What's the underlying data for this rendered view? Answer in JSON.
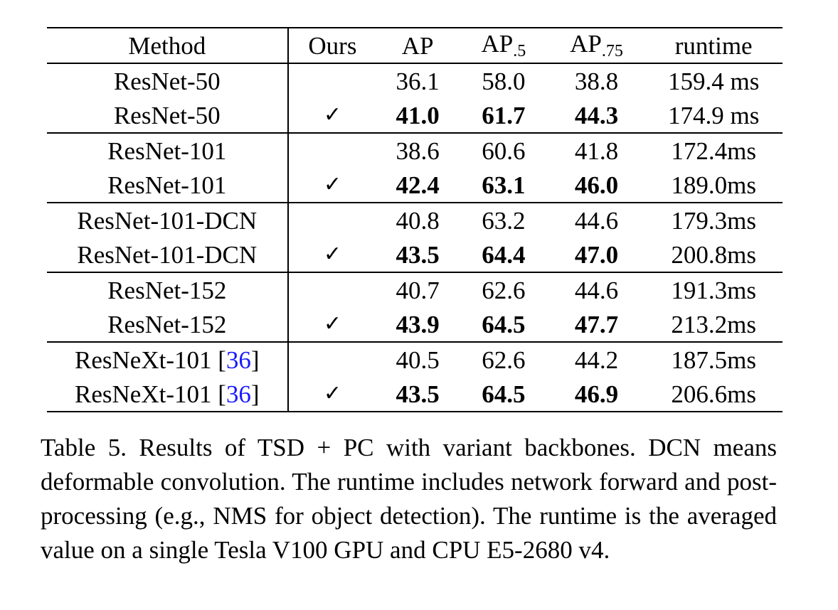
{
  "table": {
    "headers": {
      "method": "Method",
      "ours": "Ours",
      "ap": "AP",
      "ap5_base": "AP",
      "ap5_sub": ".5",
      "ap75_base": "AP",
      "ap75_sub": ".75",
      "runtime": "runtime"
    },
    "groups": [
      {
        "rows": [
          {
            "method": "ResNet-50",
            "cite": "",
            "ours": "",
            "ap": "36.1",
            "ap5": "58.0",
            "ap75": "38.8",
            "runtime": "159.4 ms"
          },
          {
            "method": "ResNet-50",
            "cite": "",
            "ours": "✓",
            "ap": "41.0",
            "ap5": "61.7",
            "ap75": "44.3",
            "runtime": "174.9 ms"
          }
        ]
      },
      {
        "rows": [
          {
            "method": "ResNet-101",
            "cite": "",
            "ours": "",
            "ap": "38.6",
            "ap5": "60.6",
            "ap75": "41.8",
            "runtime": "172.4ms"
          },
          {
            "method": "ResNet-101",
            "cite": "",
            "ours": "✓",
            "ap": "42.4",
            "ap5": "63.1",
            "ap75": "46.0",
            "runtime": "189.0ms"
          }
        ]
      },
      {
        "rows": [
          {
            "method": "ResNet-101-DCN",
            "cite": "",
            "ours": "",
            "ap": "40.8",
            "ap5": "63.2",
            "ap75": "44.6",
            "runtime": "179.3ms"
          },
          {
            "method": "ResNet-101-DCN",
            "cite": "",
            "ours": "✓",
            "ap": "43.5",
            "ap5": "64.4",
            "ap75": "47.0",
            "runtime": "200.8ms"
          }
        ]
      },
      {
        "rows": [
          {
            "method": "ResNet-152",
            "cite": "",
            "ours": "",
            "ap": "40.7",
            "ap5": "62.6",
            "ap75": "44.6",
            "runtime": "191.3ms"
          },
          {
            "method": "ResNet-152",
            "cite": "",
            "ours": "✓",
            "ap": "43.9",
            "ap5": "64.5",
            "ap75": "47.7",
            "runtime": "213.2ms"
          }
        ]
      },
      {
        "rows": [
          {
            "method": "ResNeXt-101 [",
            "cite": "36",
            "method_suffix": "]",
            "ours": "",
            "ap": "40.5",
            "ap5": "62.6",
            "ap75": "44.2",
            "runtime": "187.5ms"
          },
          {
            "method": "ResNeXt-101 [",
            "cite": "36",
            "method_suffix": "]",
            "ours": "✓",
            "ap": "43.5",
            "ap5": "64.5",
            "ap75": "46.9",
            "runtime": "206.6ms"
          }
        ]
      }
    ]
  },
  "caption": "Table 5. Results of TSD + PC with variant backbones. DCN means deformable convolution.  The runtime includes network forward and post-processing (e.g., NMS for object detection). The runtime is the averaged value on a single Tesla V100 GPU and CPU E5-2680 v4.",
  "colors": {
    "citation_link": "#1a1aff"
  }
}
